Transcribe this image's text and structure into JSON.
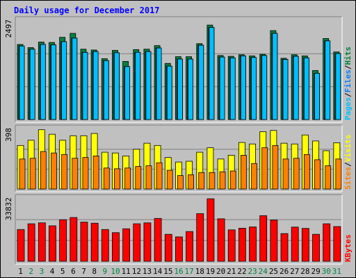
{
  "title": "Daily usage for December 2017",
  "colors": {
    "background": "#C0C0C0",
    "panel": "#C0C0C0",
    "grid": "#808080",
    "title": "#0000FF",
    "day_weekday": "#000000",
    "day_weekend": "#008040",
    "hits": "#008040",
    "files": "#0080FF",
    "pages": "#00C0FF",
    "visits": "#FFFF00",
    "sites": "#FF8000",
    "kbytes": "#FF0000"
  },
  "chart_data": [
    {
      "type": "bar",
      "title": "Daily usage for December 2017",
      "panel": "requests",
      "categories": [
        "1",
        "2",
        "3",
        "4",
        "5",
        "6",
        "7",
        "8",
        "9",
        "10",
        "11",
        "12",
        "13",
        "14",
        "15",
        "16",
        "17",
        "18",
        "19",
        "20",
        "21",
        "22",
        "23",
        "24",
        "25",
        "26",
        "27",
        "28",
        "29",
        "30",
        "31"
      ],
      "weekend_days": [
        "2",
        "3",
        "9",
        "10",
        "16",
        "17",
        "23",
        "24",
        "30",
        "31"
      ],
      "y_max_label": "2497",
      "ylim": [
        0,
        2497
      ],
      "grid": true,
      "right_label": [
        "Pages",
        "/",
        "Files",
        "/",
        "Hits"
      ],
      "series": [
        {
          "name": "Hits",
          "values": [
            1900,
            1820,
            1960,
            1950,
            2080,
            2180,
            1780,
            1760,
            1540,
            1750,
            1470,
            1770,
            1780,
            1870,
            1420,
            1590,
            1590,
            1920,
            2390,
            1620,
            1600,
            1640,
            1610,
            1650,
            2250,
            1550,
            1640,
            1610,
            1240,
            2050,
            1710
          ]
        },
        {
          "name": "Files",
          "values": [
            1860,
            1780,
            1900,
            1890,
            1970,
            2060,
            1700,
            1720,
            1490,
            1690,
            1340,
            1700,
            1720,
            1810,
            1350,
            1530,
            1530,
            1880,
            2330,
            1580,
            1560,
            1610,
            1570,
            1620,
            2180,
            1520,
            1600,
            1560,
            1170,
            1990,
            1670
          ]
        },
        {
          "name": "Pages",
          "values": [
            1860,
            1780,
            1900,
            1890,
            1970,
            2060,
            1700,
            1720,
            1490,
            1690,
            1340,
            1700,
            1720,
            1810,
            1350,
            1530,
            1530,
            1880,
            2330,
            1580,
            1560,
            1610,
            1570,
            1620,
            2180,
            1520,
            1600,
            1560,
            1170,
            1990,
            1670
          ]
        }
      ]
    },
    {
      "type": "bar",
      "panel": "visitors",
      "categories": [
        "1",
        "2",
        "3",
        "4",
        "5",
        "6",
        "7",
        "8",
        "9",
        "10",
        "11",
        "12",
        "13",
        "14",
        "15",
        "16",
        "17",
        "18",
        "19",
        "20",
        "21",
        "22",
        "23",
        "24",
        "25",
        "26",
        "27",
        "28",
        "29",
        "30",
        "31"
      ],
      "y_max_label": "398",
      "ylim": [
        0,
        398
      ],
      "grid": true,
      "right_label": [
        "Sites",
        "/",
        "Visits"
      ],
      "series": [
        {
          "name": "Visits",
          "values": [
            290,
            325,
            395,
            365,
            325,
            355,
            355,
            370,
            245,
            240,
            220,
            265,
            305,
            290,
            210,
            180,
            185,
            245,
            275,
            200,
            225,
            310,
            300,
            382,
            390,
            305,
            300,
            360,
            320,
            255,
            308
          ]
        },
        {
          "name": "Sites",
          "values": [
            200,
            205,
            250,
            240,
            230,
            205,
            210,
            220,
            140,
            135,
            140,
            150,
            155,
            175,
            125,
            90,
            95,
            110,
            110,
            115,
            120,
            225,
            170,
            275,
            290,
            200,
            205,
            230,
            195,
            155,
            200
          ]
        }
      ]
    },
    {
      "type": "bar",
      "panel": "kbytes",
      "categories": [
        "1",
        "2",
        "3",
        "4",
        "5",
        "6",
        "7",
        "8",
        "9",
        "10",
        "11",
        "12",
        "13",
        "14",
        "15",
        "16",
        "17",
        "18",
        "19",
        "20",
        "21",
        "22",
        "23",
        "24",
        "25",
        "26",
        "27",
        "28",
        "29",
        "30",
        "31"
      ],
      "y_max_label": "33832",
      "ylim": [
        0,
        33832
      ],
      "grid": true,
      "right_label": [
        "KBytes"
      ],
      "series": [
        {
          "name": "KBytes",
          "values": [
            17200,
            20300,
            20800,
            19200,
            22500,
            23700,
            21200,
            20600,
            17200,
            15500,
            17600,
            20300,
            20800,
            23200,
            14600,
            13200,
            16100,
            25800,
            33832,
            23000,
            17000,
            17900,
            18600,
            24700,
            22300,
            15000,
            18500,
            17800,
            14600,
            20300,
            18800
          ]
        }
      ]
    }
  ]
}
